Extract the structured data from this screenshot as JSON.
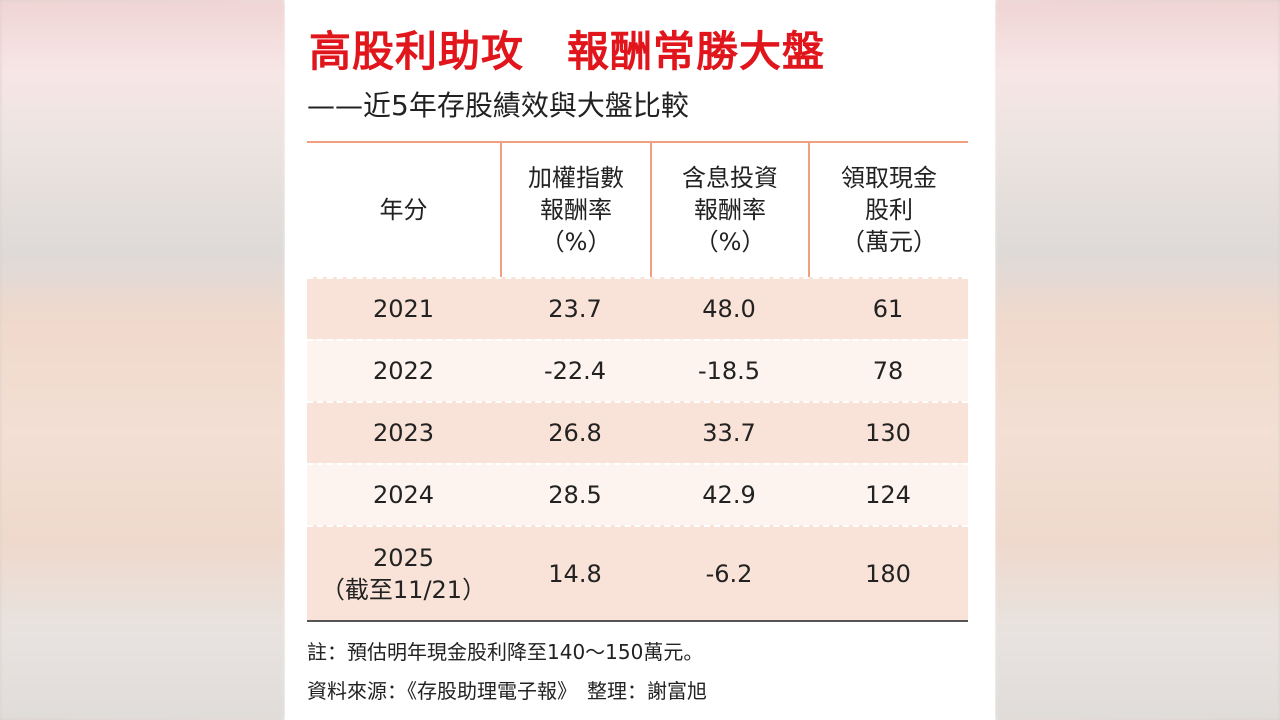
{
  "header": {
    "title": "高股利助攻　報酬常勝大盤",
    "subtitle": "——近5年存股績效與大盤比較"
  },
  "table": {
    "columns": [
      [
        "年分"
      ],
      [
        "加權指數",
        "報酬率",
        "（%）"
      ],
      [
        "含息投資",
        "報酬率",
        "（%）"
      ],
      [
        "領取現金",
        "股利",
        "（萬元）"
      ]
    ],
    "rows": [
      [
        [
          "2021"
        ],
        "23.7",
        "48.0",
        "61"
      ],
      [
        [
          "2022"
        ],
        "-22.4",
        "-18.5",
        "78"
      ],
      [
        [
          "2023"
        ],
        "26.8",
        "33.7",
        "130"
      ],
      [
        [
          "2024"
        ],
        "28.5",
        "42.9",
        "124"
      ],
      [
        [
          "2025",
          "（截至11/21）"
        ],
        "14.8",
        "-6.2",
        "180"
      ]
    ]
  },
  "notes": [
    "註：預估明年現金股利降至140～150萬元。",
    "資料來源：《存股助理電子報》　整理：謝富旭"
  ]
}
